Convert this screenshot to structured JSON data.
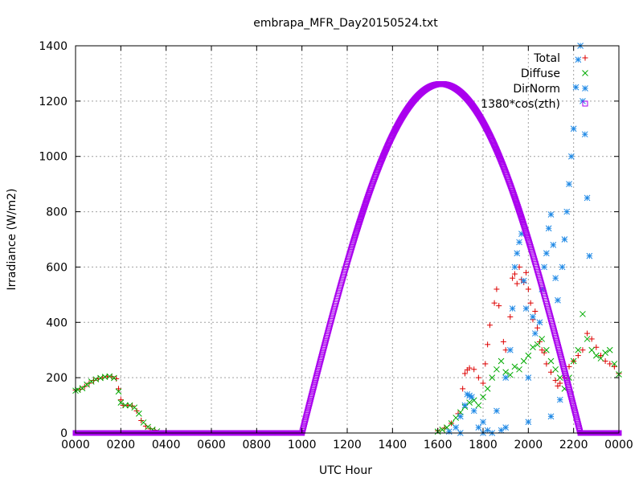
{
  "chart_data": {
    "type": "scatter",
    "title": "embrapa_MFR_Day20150524.txt",
    "xlabel": "UTC Hour",
    "ylabel": "Irradiance (W/m2)",
    "xlim": [
      0,
      24
    ],
    "ylim": [
      0,
      1400
    ],
    "grid": true,
    "legend_position": "top-right",
    "x_ticks": [
      {
        "value": 0,
        "label": "0000"
      },
      {
        "value": 2,
        "label": "0200"
      },
      {
        "value": 4,
        "label": "0400"
      },
      {
        "value": 6,
        "label": "0600"
      },
      {
        "value": 8,
        "label": "0800"
      },
      {
        "value": 10,
        "label": "1000"
      },
      {
        "value": 12,
        "label": "1200"
      },
      {
        "value": 14,
        "label": "1400"
      },
      {
        "value": 16,
        "label": "1600"
      },
      {
        "value": 18,
        "label": "1800"
      },
      {
        "value": 20,
        "label": "2000"
      },
      {
        "value": 22,
        "label": "2200"
      },
      {
        "value": 24,
        "label": "0000"
      }
    ],
    "y_ticks": [
      0,
      200,
      400,
      600,
      800,
      1000,
      1200,
      1400
    ],
    "series": [
      {
        "name": "Total",
        "marker": "plus",
        "color": "#dd0000",
        "points": [
          [
            0.0,
            155
          ],
          [
            0.2,
            158
          ],
          [
            0.4,
            168
          ],
          [
            0.6,
            180
          ],
          [
            0.8,
            190
          ],
          [
            1.0,
            196
          ],
          [
            1.2,
            200
          ],
          [
            1.4,
            204
          ],
          [
            1.6,
            204
          ],
          [
            1.8,
            196
          ],
          [
            1.9,
            160
          ],
          [
            2.0,
            120
          ],
          [
            2.1,
            100
          ],
          [
            2.3,
            100
          ],
          [
            2.5,
            98
          ],
          [
            2.7,
            80
          ],
          [
            2.9,
            45
          ],
          [
            3.1,
            25
          ],
          [
            3.3,
            15
          ],
          [
            3.5,
            10
          ],
          [
            16.0,
            8
          ],
          [
            16.3,
            18
          ],
          [
            16.6,
            35
          ],
          [
            16.9,
            70
          ],
          [
            17.1,
            160
          ],
          [
            17.2,
            215
          ],
          [
            17.3,
            228
          ],
          [
            17.4,
            235
          ],
          [
            17.6,
            230
          ],
          [
            17.8,
            200
          ],
          [
            18.0,
            180
          ],
          [
            18.1,
            250
          ],
          [
            18.2,
            320
          ],
          [
            18.3,
            390
          ],
          [
            18.5,
            470
          ],
          [
            18.6,
            520
          ],
          [
            18.7,
            460
          ],
          [
            18.9,
            330
          ],
          [
            19.0,
            300
          ],
          [
            19.2,
            420
          ],
          [
            19.3,
            560
          ],
          [
            19.4,
            575
          ],
          [
            19.5,
            540
          ],
          [
            19.6,
            600
          ],
          [
            19.7,
            555
          ],
          [
            19.8,
            545
          ],
          [
            19.9,
            580
          ],
          [
            20.0,
            520
          ],
          [
            20.1,
            470
          ],
          [
            20.2,
            410
          ],
          [
            20.3,
            440
          ],
          [
            20.4,
            380
          ],
          [
            20.5,
            330
          ],
          [
            20.6,
            300
          ],
          [
            20.7,
            290
          ],
          [
            20.8,
            250
          ],
          [
            21.0,
            220
          ],
          [
            21.2,
            190
          ],
          [
            21.3,
            170
          ],
          [
            21.4,
            180
          ],
          [
            21.6,
            200
          ],
          [
            21.8,
            240
          ],
          [
            22.0,
            260
          ],
          [
            22.2,
            280
          ],
          [
            22.4,
            300
          ],
          [
            22.6,
            360
          ],
          [
            22.8,
            340
          ],
          [
            23.0,
            310
          ],
          [
            23.2,
            280
          ],
          [
            23.4,
            260
          ],
          [
            23.6,
            250
          ],
          [
            23.8,
            240
          ],
          [
            24.0,
            215
          ]
        ]
      },
      {
        "name": "Diffuse",
        "marker": "cross",
        "color": "#00aa00",
        "points": [
          [
            0.0,
            153
          ],
          [
            0.1,
            156
          ],
          [
            0.3,
            162
          ],
          [
            0.5,
            175
          ],
          [
            0.7,
            186
          ],
          [
            0.9,
            194
          ],
          [
            1.1,
            199
          ],
          [
            1.3,
            203
          ],
          [
            1.5,
            205
          ],
          [
            1.7,
            199
          ],
          [
            1.9,
            150
          ],
          [
            2.0,
            110
          ],
          [
            2.2,
            100
          ],
          [
            2.4,
            100
          ],
          [
            2.6,
            92
          ],
          [
            2.8,
            70
          ],
          [
            3.0,
            38
          ],
          [
            3.2,
            22
          ],
          [
            3.4,
            12
          ],
          [
            3.6,
            6
          ],
          [
            16.0,
            5
          ],
          [
            16.2,
            12
          ],
          [
            16.4,
            20
          ],
          [
            16.6,
            35
          ],
          [
            16.8,
            55
          ],
          [
            17.0,
            75
          ],
          [
            17.2,
            95
          ],
          [
            17.4,
            110
          ],
          [
            17.6,
            118
          ],
          [
            17.8,
            100
          ],
          [
            18.0,
            130
          ],
          [
            18.2,
            160
          ],
          [
            18.4,
            200
          ],
          [
            18.6,
            230
          ],
          [
            18.8,
            260
          ],
          [
            19.0,
            220
          ],
          [
            19.2,
            210
          ],
          [
            19.4,
            240
          ],
          [
            19.6,
            230
          ],
          [
            19.8,
            260
          ],
          [
            20.0,
            280
          ],
          [
            20.2,
            310
          ],
          [
            20.4,
            320
          ],
          [
            20.6,
            340
          ],
          [
            20.8,
            300
          ],
          [
            21.0,
            260
          ],
          [
            21.2,
            230
          ],
          [
            21.4,
            200
          ],
          [
            21.6,
            160
          ],
          [
            21.8,
            200
          ],
          [
            22.0,
            260
          ],
          [
            22.2,
            300
          ],
          [
            22.4,
            430
          ],
          [
            22.6,
            340
          ],
          [
            22.8,
            300
          ],
          [
            23.0,
            280
          ],
          [
            23.2,
            270
          ],
          [
            23.4,
            290
          ],
          [
            23.6,
            300
          ],
          [
            23.8,
            250
          ],
          [
            24.0,
            212
          ]
        ]
      },
      {
        "name": "DirNorm",
        "marker": "star",
        "color": "#1e88e5",
        "points": [
          [
            16.5,
            5
          ],
          [
            16.8,
            20
          ],
          [
            17.0,
            60
          ],
          [
            17.2,
            100
          ],
          [
            17.3,
            140
          ],
          [
            17.4,
            135
          ],
          [
            17.5,
            130
          ],
          [
            17.6,
            80
          ],
          [
            17.8,
            20
          ],
          [
            18.0,
            40
          ],
          [
            18.2,
            10
          ],
          [
            18.4,
            0
          ],
          [
            18.6,
            80
          ],
          [
            18.8,
            10
          ],
          [
            19.0,
            200
          ],
          [
            19.2,
            300
          ],
          [
            19.3,
            450
          ],
          [
            19.4,
            600
          ],
          [
            19.5,
            650
          ],
          [
            19.6,
            690
          ],
          [
            19.7,
            720
          ],
          [
            19.8,
            550
          ],
          [
            19.9,
            450
          ],
          [
            20.0,
            200
          ],
          [
            20.2,
            420
          ],
          [
            20.3,
            360
          ],
          [
            20.5,
            400
          ],
          [
            20.6,
            520
          ],
          [
            20.7,
            600
          ],
          [
            20.8,
            650
          ],
          [
            20.9,
            740
          ],
          [
            21.0,
            790
          ],
          [
            21.1,
            680
          ],
          [
            21.2,
            560
          ],
          [
            21.3,
            480
          ],
          [
            21.5,
            600
          ],
          [
            21.6,
            700
          ],
          [
            21.7,
            800
          ],
          [
            21.8,
            900
          ],
          [
            21.9,
            1000
          ],
          [
            22.0,
            1100
          ],
          [
            22.1,
            1250
          ],
          [
            22.2,
            1350
          ],
          [
            22.3,
            1400
          ],
          [
            22.4,
            1200
          ],
          [
            22.5,
            1080
          ],
          [
            22.6,
            850
          ],
          [
            22.7,
            640
          ],
          [
            21.4,
            120
          ],
          [
            21.0,
            60
          ],
          [
            20.0,
            40
          ],
          [
            19.0,
            20
          ],
          [
            18.0,
            0
          ],
          [
            17.0,
            0
          ]
        ]
      },
      {
        "name": "1380*cos(zth)",
        "marker": "square",
        "color": "#aa00ee",
        "function": "max(0, 1262*cos(pi*(x-16.15)/12.35))",
        "peak_value": 1262,
        "peak_hour": 16.15,
        "zero_crossings": [
          10.0,
          22.3
        ]
      }
    ]
  }
}
